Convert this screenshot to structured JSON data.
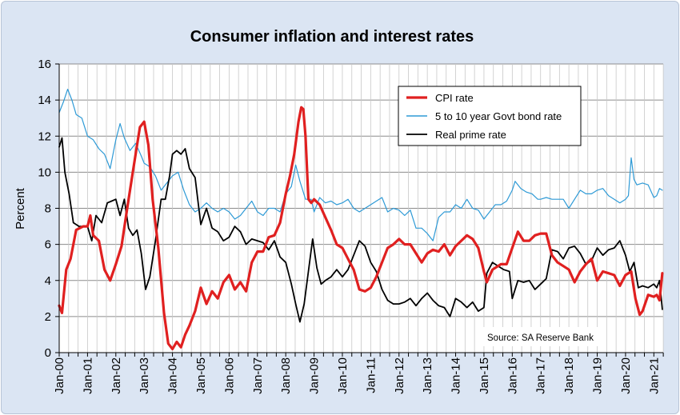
{
  "chart_data": {
    "type": "line",
    "title": "Consumer inflation and interest rates",
    "ylabel": "Percent",
    "xlabel": "",
    "ylim": [
      0,
      16
    ],
    "yticks": [
      0,
      2,
      4,
      6,
      8,
      10,
      12,
      14,
      16
    ],
    "xlim": [
      2000.0,
      2021.33
    ],
    "xticks": [
      "Jan-00",
      "Jan-01",
      "Jan-02",
      "Jan-03",
      "Jan-04",
      "Jan-05",
      "Jan-06",
      "Jan-07",
      "Jan-08",
      "Jan-09",
      "Jan-10",
      "Jan-11",
      "Jan-12",
      "Jan-13",
      "Jan-14",
      "Jan-15",
      "Jan-16",
      "Jan-17",
      "Jan-18",
      "Jan-19",
      "Jan-20",
      "Jan-21"
    ],
    "grid": true,
    "legend_position": "top-right",
    "source_note": "Source: SA Reserve Bank",
    "series": [
      {
        "name": "CPI rate",
        "color": "#e02020",
        "width": 3.2,
        "x": [
          2000.0,
          2000.1,
          2000.25,
          2000.4,
          2000.6,
          2000.85,
          2001.0,
          2001.1,
          2001.2,
          2001.4,
          2001.6,
          2001.8,
          2002.0,
          2002.2,
          2002.4,
          2002.6,
          2002.75,
          2002.85,
          2003.0,
          2003.15,
          2003.3,
          2003.5,
          2003.7,
          2003.85,
          2004.0,
          2004.15,
          2004.3,
          2004.45,
          2004.6,
          2004.8,
          2005.0,
          2005.2,
          2005.4,
          2005.6,
          2005.8,
          2006.0,
          2006.2,
          2006.4,
          2006.6,
          2006.8,
          2007.0,
          2007.2,
          2007.4,
          2007.6,
          2007.8,
          2008.0,
          2008.15,
          2008.3,
          2008.45,
          2008.55,
          2008.62,
          2008.7,
          2008.8,
          2008.9,
          2009.0,
          2009.2,
          2009.4,
          2009.6,
          2009.8,
          2010.0,
          2010.2,
          2010.4,
          2010.6,
          2010.8,
          2011.0,
          2011.2,
          2011.4,
          2011.6,
          2011.8,
          2012.0,
          2012.2,
          2012.4,
          2012.6,
          2012.8,
          2013.0,
          2013.2,
          2013.4,
          2013.6,
          2013.8,
          2014.0,
          2014.2,
          2014.4,
          2014.6,
          2014.8,
          2015.0,
          2015.1,
          2015.3,
          2015.6,
          2015.8,
          2016.0,
          2016.2,
          2016.4,
          2016.6,
          2016.8,
          2017.0,
          2017.2,
          2017.4,
          2017.6,
          2017.8,
          2018.0,
          2018.2,
          2018.4,
          2018.6,
          2018.8,
          2019.0,
          2019.2,
          2019.4,
          2019.6,
          2019.8,
          2020.0,
          2020.2,
          2020.35,
          2020.5,
          2020.6,
          2020.8,
          2021.0,
          2021.1,
          2021.2,
          2021.3
        ],
        "y": [
          2.6,
          2.2,
          4.6,
          5.2,
          6.8,
          7.0,
          7.0,
          7.6,
          6.5,
          6.2,
          4.6,
          4.0,
          4.9,
          5.9,
          8.0,
          10.0,
          11.5,
          12.5,
          12.8,
          11.5,
          8.5,
          5.8,
          2.2,
          0.5,
          0.2,
          0.6,
          0.3,
          1.0,
          1.5,
          2.3,
          3.6,
          2.7,
          3.4,
          3.0,
          3.9,
          4.3,
          3.5,
          3.9,
          3.4,
          5.0,
          5.6,
          5.6,
          6.4,
          6.5,
          7.2,
          8.8,
          9.8,
          11.0,
          12.8,
          13.6,
          13.5,
          12.0,
          8.5,
          8.3,
          8.5,
          8.2,
          7.5,
          6.8,
          6.0,
          5.8,
          5.2,
          4.6,
          3.5,
          3.4,
          3.6,
          4.2,
          5.0,
          5.8,
          6.0,
          6.3,
          6.0,
          6.0,
          5.5,
          5.0,
          5.5,
          5.7,
          5.6,
          6.0,
          5.4,
          5.9,
          6.2,
          6.5,
          6.3,
          5.8,
          4.5,
          3.9,
          4.6,
          4.9,
          4.9,
          5.8,
          6.7,
          6.2,
          6.2,
          6.5,
          6.6,
          6.6,
          5.4,
          5.0,
          4.8,
          4.6,
          3.9,
          4.5,
          4.9,
          5.2,
          4.0,
          4.5,
          4.4,
          4.3,
          3.7,
          4.3,
          4.5,
          3.0,
          2.1,
          2.3,
          3.2,
          3.1,
          3.2,
          2.9,
          4.4
        ]
      },
      {
        "name": "5 to 10 year Govt bond rate",
        "color": "#2e9ad6",
        "width": 1.2,
        "x": [
          2000.0,
          2000.15,
          2000.3,
          2000.45,
          2000.6,
          2000.8,
          2001.0,
          2001.2,
          2001.4,
          2001.6,
          2001.8,
          2002.0,
          2002.15,
          2002.3,
          2002.5,
          2002.7,
          2002.9,
          2003.0,
          2003.2,
          2003.4,
          2003.6,
          2003.8,
          2004.0,
          2004.2,
          2004.4,
          2004.6,
          2004.8,
          2005.0,
          2005.2,
          2005.4,
          2005.6,
          2005.8,
          2006.0,
          2006.2,
          2006.4,
          2006.6,
          2006.8,
          2007.0,
          2007.2,
          2007.4,
          2007.6,
          2007.8,
          2008.0,
          2008.2,
          2008.35,
          2008.5,
          2008.7,
          2008.9,
          2009.0,
          2009.2,
          2009.4,
          2009.6,
          2009.8,
          2010.0,
          2010.2,
          2010.4,
          2010.6,
          2010.8,
          2011.0,
          2011.2,
          2011.4,
          2011.6,
          2011.8,
          2012.0,
          2012.2,
          2012.4,
          2012.6,
          2012.8,
          2013.0,
          2013.2,
          2013.4,
          2013.6,
          2013.8,
          2014.0,
          2014.2,
          2014.4,
          2014.6,
          2014.8,
          2015.0,
          2015.2,
          2015.4,
          2015.6,
          2015.8,
          2016.0,
          2016.1,
          2016.3,
          2016.5,
          2016.7,
          2016.9,
          2017.0,
          2017.2,
          2017.4,
          2017.6,
          2017.8,
          2018.0,
          2018.2,
          2018.4,
          2018.6,
          2018.8,
          2019.0,
          2019.2,
          2019.4,
          2019.6,
          2019.8,
          2020.0,
          2020.1,
          2020.2,
          2020.3,
          2020.4,
          2020.6,
          2020.8,
          2021.0,
          2021.1,
          2021.2,
          2021.3
        ],
        "y": [
          13.3,
          13.9,
          14.6,
          14.0,
          13.2,
          13.0,
          12.0,
          11.8,
          11.3,
          11.0,
          10.2,
          11.8,
          12.7,
          11.9,
          11.2,
          11.6,
          10.9,
          10.5,
          10.3,
          9.8,
          9.0,
          9.4,
          9.8,
          10.0,
          9.0,
          8.2,
          7.8,
          8.0,
          8.3,
          8.0,
          7.8,
          8.0,
          7.8,
          7.4,
          7.6,
          8.0,
          8.4,
          7.8,
          7.6,
          8.0,
          8.0,
          7.8,
          8.8,
          9.2,
          10.4,
          9.5,
          8.5,
          8.5,
          7.8,
          8.6,
          8.3,
          8.4,
          8.2,
          8.3,
          8.5,
          8.0,
          7.8,
          8.0,
          8.2,
          8.4,
          8.6,
          7.8,
          8.0,
          7.9,
          7.6,
          7.9,
          6.9,
          6.9,
          6.6,
          6.2,
          7.5,
          7.8,
          7.8,
          8.2,
          8.0,
          8.5,
          8.0,
          7.9,
          7.4,
          7.8,
          8.2,
          8.2,
          8.4,
          9.0,
          9.5,
          9.1,
          8.9,
          8.8,
          8.5,
          8.5,
          8.6,
          8.5,
          8.5,
          8.5,
          8.0,
          8.5,
          9.0,
          8.8,
          8.8,
          9.0,
          9.1,
          8.7,
          8.5,
          8.3,
          8.5,
          8.7,
          10.8,
          9.6,
          9.3,
          9.4,
          9.3,
          8.6,
          8.7,
          9.1,
          9.0
        ]
      },
      {
        "name": "Real prime rate",
        "color": "#000000",
        "width": 1.8,
        "x": [
          2000.0,
          2000.1,
          2000.2,
          2000.35,
          2000.5,
          2000.7,
          2001.0,
          2001.15,
          2001.3,
          2001.5,
          2001.7,
          2001.85,
          2002.0,
          2002.15,
          2002.3,
          2002.45,
          2002.6,
          2002.75,
          2002.9,
          2003.05,
          2003.2,
          2003.4,
          2003.6,
          2003.75,
          2003.9,
          2004.0,
          2004.15,
          2004.3,
          2004.45,
          2004.6,
          2004.8,
          2005.0,
          2005.2,
          2005.4,
          2005.6,
          2005.8,
          2006.0,
          2006.2,
          2006.4,
          2006.6,
          2006.8,
          2007.0,
          2007.2,
          2007.4,
          2007.6,
          2007.8,
          2008.0,
          2008.2,
          2008.35,
          2008.5,
          2008.65,
          2008.8,
          2008.95,
          2009.1,
          2009.25,
          2009.4,
          2009.6,
          2009.8,
          2010.0,
          2010.2,
          2010.4,
          2010.6,
          2010.8,
          2011.0,
          2011.2,
          2011.4,
          2011.6,
          2011.8,
          2012.0,
          2012.2,
          2012.4,
          2012.6,
          2012.8,
          2013.0,
          2013.2,
          2013.4,
          2013.6,
          2013.8,
          2014.0,
          2014.2,
          2014.4,
          2014.6,
          2014.8,
          2015.0,
          2015.1,
          2015.3,
          2015.5,
          2015.7,
          2015.9,
          2016.0,
          2016.2,
          2016.4,
          2016.6,
          2016.8,
          2017.0,
          2017.2,
          2017.4,
          2017.6,
          2017.8,
          2018.0,
          2018.2,
          2018.4,
          2018.6,
          2018.8,
          2019.0,
          2019.2,
          2019.4,
          2019.6,
          2019.8,
          2020.0,
          2020.15,
          2020.3,
          2020.45,
          2020.6,
          2020.8,
          2021.0,
          2021.1,
          2021.2,
          2021.3
        ],
        "y": [
          11.4,
          11.9,
          10.0,
          8.8,
          7.2,
          7.0,
          7.0,
          6.2,
          7.6,
          7.2,
          8.3,
          8.4,
          8.5,
          7.6,
          8.5,
          6.9,
          6.5,
          6.8,
          5.5,
          3.5,
          4.2,
          6.2,
          8.5,
          8.5,
          9.8,
          11.0,
          11.2,
          11.0,
          11.3,
          10.2,
          9.7,
          7.1,
          8.0,
          6.9,
          6.7,
          6.2,
          6.4,
          7.0,
          6.7,
          6.0,
          6.3,
          6.2,
          6.1,
          5.7,
          6.2,
          5.3,
          5.0,
          3.8,
          2.7,
          1.7,
          2.7,
          4.5,
          6.3,
          4.7,
          3.8,
          4.0,
          4.2,
          4.6,
          4.2,
          4.6,
          5.4,
          6.2,
          5.9,
          5.0,
          4.5,
          3.5,
          2.9,
          2.7,
          2.7,
          2.8,
          3.0,
          2.6,
          3.0,
          3.3,
          2.9,
          2.6,
          2.5,
          2.0,
          3.0,
          2.8,
          2.5,
          2.8,
          2.3,
          2.5,
          4.4,
          5.0,
          4.8,
          4.6,
          4.5,
          3.0,
          4.0,
          3.9,
          4.0,
          3.5,
          3.8,
          4.1,
          5.7,
          5.6,
          5.2,
          5.8,
          5.9,
          5.5,
          4.9,
          5.1,
          5.8,
          5.4,
          5.7,
          5.8,
          6.2,
          5.4,
          4.5,
          5.0,
          3.6,
          3.7,
          3.6,
          3.8,
          3.6,
          4.0,
          2.4
        ]
      }
    ]
  }
}
